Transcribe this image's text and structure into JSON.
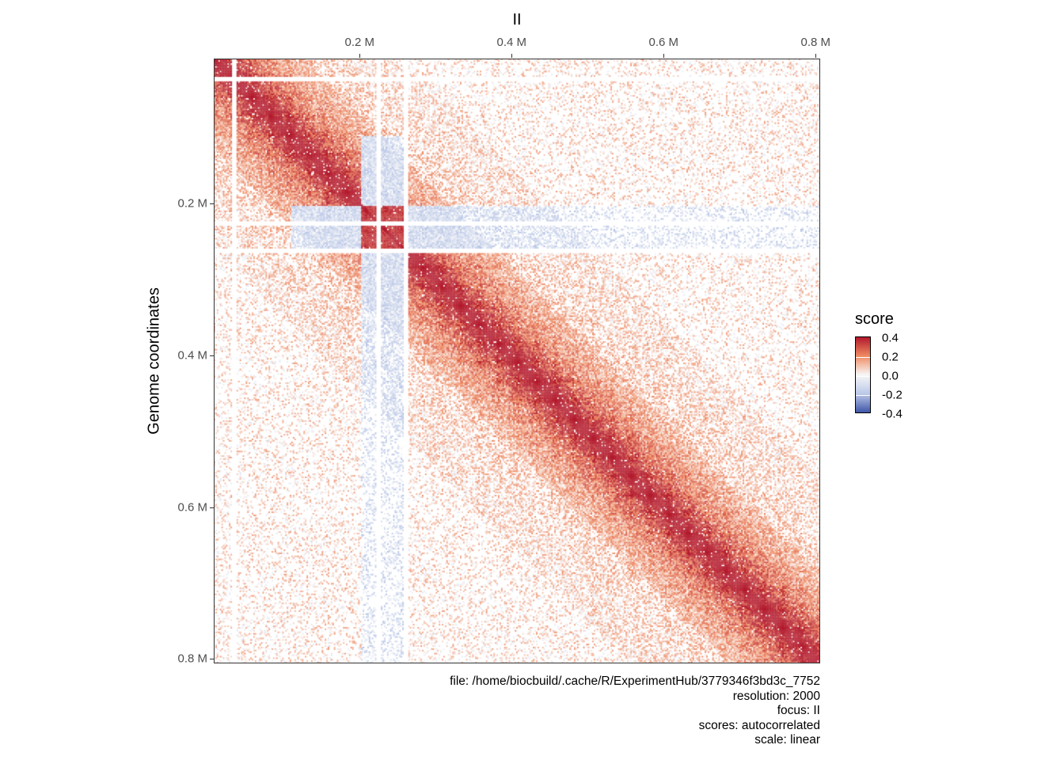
{
  "chart_data": {
    "type": "heatmap",
    "title": "II",
    "xlabel": "",
    "ylabel": "Genome coordinates",
    "x_ticks": [
      {
        "value": 0.2,
        "label": "0.2 M"
      },
      {
        "value": 0.4,
        "label": "0.4 M"
      },
      {
        "value": 0.6,
        "label": "0.6 M"
      },
      {
        "value": 0.8,
        "label": "0.8 M"
      }
    ],
    "y_ticks": [
      {
        "value": 0.2,
        "label": "0.2 M"
      },
      {
        "value": 0.4,
        "label": "0.4 M"
      },
      {
        "value": 0.6,
        "label": "0.6 M"
      },
      {
        "value": 0.8,
        "label": "0.8 M"
      }
    ],
    "xlim_mb": [
      0.008,
      0.806
    ],
    "ylim_mb": [
      0.009,
      0.806
    ],
    "bin_size_bp": 2000,
    "empty_bins_mb": [
      0.032,
      0.222,
      0.258
    ],
    "legend": {
      "title": "score",
      "placement": "right",
      "range": [
        -0.4,
        0.4
      ],
      "labels": [
        "0.4",
        "0.2",
        "0.0",
        "-0.2",
        "-0.4"
      ],
      "colors": {
        "high": "#b2182b",
        "mid_high": "#ef8a62",
        "zero": "#f7f7f7",
        "mid_low": "#bcc9e8",
        "low": "#3f56a8"
      }
    }
  },
  "caption": {
    "file": "file: /home/biocbuild/.cache/R/ExperimentHub/3779346f3bd3c_7752",
    "resolution": "resolution: 2000",
    "focus": "focus: II",
    "scores": "scores: autocorrelated",
    "scale": "scale: linear"
  }
}
